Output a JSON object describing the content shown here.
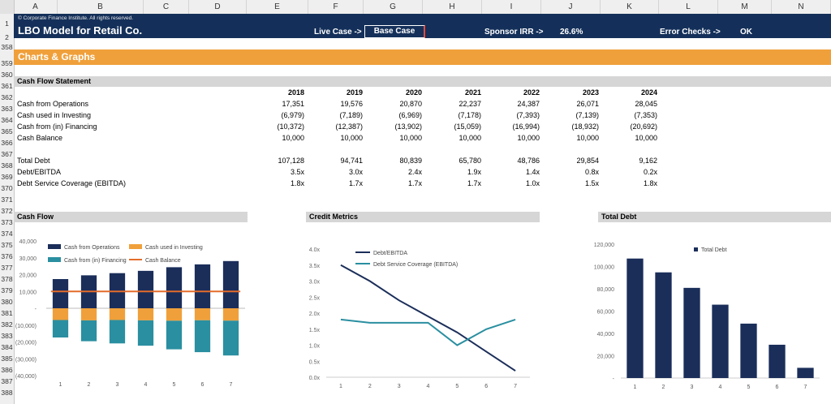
{
  "columns": [
    "A",
    "B",
    "C",
    "D",
    "E",
    "F",
    "G",
    "H",
    "I",
    "J",
    "K",
    "L",
    "M",
    "N"
  ],
  "rows": [
    "1",
    "2",
    "358",
    "359",
    "360",
    "361",
    "362",
    "363",
    "364",
    "365",
    "366",
    "367",
    "368",
    "369",
    "370",
    "371",
    "372",
    "373",
    "374",
    "375",
    "376",
    "377",
    "378",
    "379",
    "380",
    "381",
    "382",
    "383",
    "384",
    "385",
    "386",
    "387",
    "388"
  ],
  "header": {
    "copyright": "© Corporate Finance Institute. All rights reserved.",
    "title": "LBO Model for Retail Co.",
    "live_case_label": "Live Case ->",
    "case_value": "Base Case",
    "irr_label": "Sponsor IRR ->",
    "irr_value": "26.6%",
    "error_label": "Error Checks ->",
    "error_value": "OK"
  },
  "section_title": "Charts & Graphs",
  "cash_flow_statement": {
    "title": "Cash Flow Statement",
    "years": [
      "2018",
      "2019",
      "2020",
      "2021",
      "2022",
      "2023",
      "2024"
    ],
    "rows": [
      {
        "label": "Cash from Operations",
        "values": [
          "17,351",
          "19,576",
          "20,870",
          "22,237",
          "24,387",
          "26,071",
          "28,045"
        ]
      },
      {
        "label": "Cash used in Investing",
        "values": [
          "(6,979)",
          "(7,189)",
          "(6,969)",
          "(7,178)",
          "(7,393)",
          "(7,139)",
          "(7,353)"
        ]
      },
      {
        "label": "Cash from (in) Financing",
        "values": [
          "(10,372)",
          "(12,387)",
          "(13,902)",
          "(15,059)",
          "(16,994)",
          "(18,932)",
          "(20,692)"
        ]
      },
      {
        "label": "Cash Balance",
        "values": [
          "10,000",
          "10,000",
          "10,000",
          "10,000",
          "10,000",
          "10,000",
          "10,000"
        ]
      },
      {
        "label": "Total Debt",
        "values": [
          "107,128",
          "94,741",
          "80,839",
          "65,780",
          "48,786",
          "29,854",
          "9,162"
        ]
      },
      {
        "label": "Debt/EBITDA",
        "values": [
          "3.5x",
          "3.0x",
          "2.4x",
          "1.9x",
          "1.4x",
          "0.8x",
          "0.2x"
        ]
      },
      {
        "label": "Debt Service Coverage (EBITDA)",
        "values": [
          "1.8x",
          "1.7x",
          "1.7x",
          "1.7x",
          "1.0x",
          "1.5x",
          "1.8x"
        ]
      }
    ]
  },
  "chart_titles": {
    "cash_flow": "Cash Flow",
    "credit": "Credit Metrics",
    "debt": "Total Debt"
  },
  "colors": {
    "navy": "#1b2e5a",
    "orange": "#f0a03a",
    "teal": "#2a8fa0",
    "line_orange": "#e46c2a"
  },
  "chart_data": [
    {
      "type": "bar",
      "title": "Cash Flow",
      "categories": [
        "1",
        "2",
        "3",
        "4",
        "5",
        "6",
        "7"
      ],
      "ylim": [
        -40000,
        40000
      ],
      "yticks": [
        "40,000",
        "30,000",
        "20,000",
        "10,000",
        "-",
        "(10,000)",
        "(20,000)",
        "(30,000)",
        "(40,000)"
      ],
      "ytick_values": [
        40000,
        30000,
        20000,
        10000,
        0,
        -10000,
        -20000,
        -30000,
        -40000
      ],
      "series": [
        {
          "name": "Cash from Operations",
          "values": [
            17351,
            19576,
            20870,
            22237,
            24387,
            26071,
            28045
          ]
        },
        {
          "name": "Cash used in Investing",
          "values": [
            -6979,
            -7189,
            -6969,
            -7178,
            -7393,
            -7139,
            -7353
          ]
        },
        {
          "name": "Cash from (in) Financing",
          "values": [
            -10372,
            -12387,
            -13902,
            -15059,
            -16994,
            -18932,
            -20692
          ]
        },
        {
          "name": "Cash Balance",
          "values": [
            10000,
            10000,
            10000,
            10000,
            10000,
            10000,
            10000
          ]
        }
      ]
    },
    {
      "type": "line",
      "title": "Credit Metrics",
      "categories": [
        "1",
        "2",
        "3",
        "4",
        "5",
        "6",
        "7"
      ],
      "ylim": [
        0,
        4
      ],
      "yticks": [
        "4.0x",
        "3.5x",
        "3.0x",
        "2.5x",
        "2.0x",
        "1.5x",
        "1.0x",
        "0.5x",
        "0.0x"
      ],
      "ytick_values": [
        4,
        3.5,
        3,
        2.5,
        2,
        1.5,
        1,
        0.5,
        0
      ],
      "series": [
        {
          "name": "Debt/EBITDA",
          "values": [
            3.5,
            3.0,
            2.4,
            1.9,
            1.4,
            0.8,
            0.2
          ]
        },
        {
          "name": "Debt Service Coverage (EBITDA)",
          "values": [
            1.8,
            1.7,
            1.7,
            1.7,
            1.0,
            1.5,
            1.8
          ]
        }
      ]
    },
    {
      "type": "bar",
      "title": "Total Debt",
      "categories": [
        "1",
        "2",
        "3",
        "4",
        "5",
        "6",
        "7"
      ],
      "ylim": [
        0,
        120000
      ],
      "yticks": [
        "120,000",
        "100,000",
        "80,000",
        "60,000",
        "40,000",
        "20,000",
        "-"
      ],
      "ytick_values": [
        120000,
        100000,
        80000,
        60000,
        40000,
        20000,
        0
      ],
      "series": [
        {
          "name": "Total Debt",
          "values": [
            107128,
            94741,
            80839,
            65780,
            48786,
            29854,
            9162
          ]
        }
      ]
    }
  ]
}
